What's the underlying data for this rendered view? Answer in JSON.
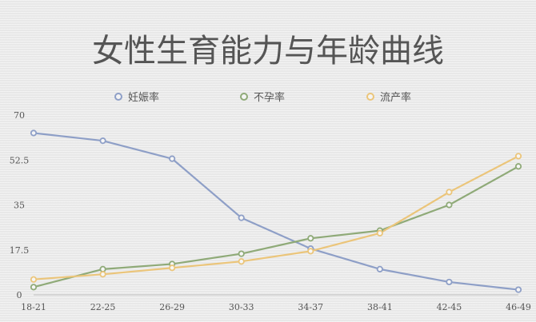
{
  "chart_data": {
    "type": "line",
    "title": "女性生育能力与年龄曲线",
    "categories": [
      "18-21",
      "22-25",
      "26-29",
      "30-33",
      "34-37",
      "38-41",
      "42-45",
      "46-49"
    ],
    "series": [
      {
        "name": "妊娠率",
        "color": "#8e9fc7",
        "values": [
          63,
          60,
          53,
          30,
          18,
          10,
          5,
          2
        ]
      },
      {
        "name": "不孕率",
        "color": "#8faa78",
        "values": [
          3,
          10,
          12,
          16,
          22,
          25,
          35,
          50
        ]
      },
      {
        "name": "流产率",
        "color": "#ebc57a",
        "values": [
          6,
          8,
          10.5,
          13,
          17,
          24,
          40,
          54
        ]
      }
    ],
    "y_ticks": [
      "0",
      "17.5",
      "35",
      "52.5",
      "70"
    ],
    "ylim": [
      0,
      70
    ],
    "grid": false,
    "legend_position": "top"
  }
}
